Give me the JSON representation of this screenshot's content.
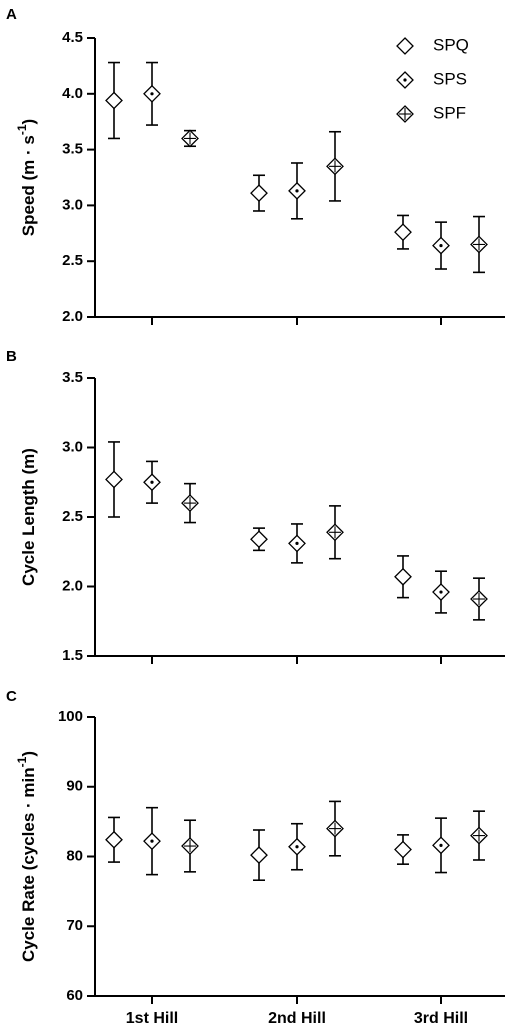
{
  "figure": {
    "categories": [
      "1st Hill",
      "2nd Hill",
      "3rd Hill"
    ],
    "legend": [
      {
        "name": "SPQ",
        "marker": "diamond"
      },
      {
        "name": "SPS",
        "marker": "diamond-dot"
      },
      {
        "name": "SPF",
        "marker": "diamond-cross"
      }
    ]
  },
  "chart_data": [
    {
      "type": "scatter",
      "panel_label": "A",
      "ylabel": "Speed (m · s",
      "ylabel_sup": "-1",
      "ylabel_close": ")",
      "ylim": [
        2.0,
        4.5
      ],
      "ytick_labels": [
        "2.0",
        "2.5",
        "3.0",
        "3.5",
        "4.0",
        "4.5"
      ],
      "categories": [
        "1st Hill",
        "2nd Hill",
        "3rd Hill"
      ],
      "series": [
        {
          "name": "SPQ",
          "values": [
            3.94,
            3.11,
            2.76
          ],
          "errors": [
            0.34,
            0.16,
            0.15
          ]
        },
        {
          "name": "SPS",
          "values": [
            4.0,
            3.13,
            2.64
          ],
          "errors": [
            0.28,
            0.25,
            0.21
          ]
        },
        {
          "name": "SPF",
          "values": [
            3.6,
            3.35,
            2.65
          ],
          "errors": [
            0.07,
            0.31,
            0.25
          ]
        }
      ],
      "grid": false,
      "legend_position": "top-right"
    },
    {
      "type": "scatter",
      "panel_label": "B",
      "ylabel": "Cycle Length (m)",
      "ylabel_sup": "",
      "ylabel_close": "",
      "ylim": [
        1.5,
        3.5
      ],
      "ytick_labels": [
        "1.5",
        "2.0",
        "2.5",
        "3.0",
        "3.5"
      ],
      "categories": [
        "1st Hill",
        "2nd Hill",
        "3rd Hill"
      ],
      "series": [
        {
          "name": "SPQ",
          "values": [
            2.77,
            2.34,
            2.07
          ],
          "errors": [
            0.27,
            0.08,
            0.15
          ]
        },
        {
          "name": "SPS",
          "values": [
            2.75,
            2.31,
            1.96
          ],
          "errors": [
            0.15,
            0.14,
            0.15
          ]
        },
        {
          "name": "SPF",
          "values": [
            2.6,
            2.39,
            1.91
          ],
          "errors": [
            0.14,
            0.19,
            0.15
          ]
        }
      ],
      "grid": false
    },
    {
      "type": "scatter",
      "panel_label": "C",
      "ylabel": "Cycle Rate (cycles · min",
      "ylabel_sup": "-1",
      "ylabel_close": ")",
      "ylim": [
        60,
        100
      ],
      "ytick_labels": [
        "60",
        "70",
        "80",
        "90",
        "100"
      ],
      "categories": [
        "1st Hill",
        "2nd Hill",
        "3rd Hill"
      ],
      "series": [
        {
          "name": "SPQ",
          "values": [
            82.4,
            80.2,
            81.0
          ],
          "errors": [
            3.2,
            3.6,
            2.1
          ]
        },
        {
          "name": "SPS",
          "values": [
            82.2,
            81.4,
            81.6
          ],
          "errors": [
            4.8,
            3.3,
            3.9
          ]
        },
        {
          "name": "SPF",
          "values": [
            81.5,
            84.0,
            83.0
          ],
          "errors": [
            3.7,
            3.9,
            3.5
          ]
        }
      ],
      "grid": false
    }
  ]
}
